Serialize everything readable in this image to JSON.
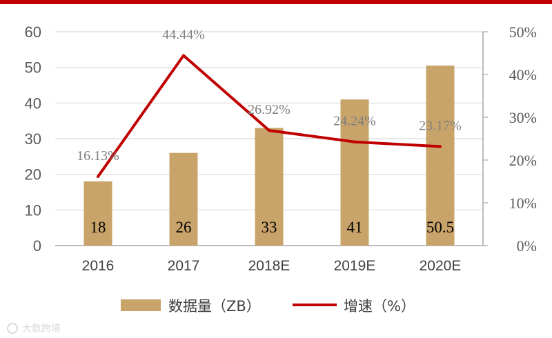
{
  "chart_data": {
    "type": "bar",
    "categories": [
      "2016",
      "2017",
      "2018E",
      "2019E",
      "2020E"
    ],
    "series": [
      {
        "name": "数据量（ZB）",
        "type": "bar",
        "axis": "left",
        "values": [
          18,
          26,
          33,
          41,
          50.5
        ],
        "value_labels": [
          "18",
          "26",
          "33",
          "41",
          "50.5"
        ],
        "color": "#C9A46A"
      },
      {
        "name": "增速（%）",
        "type": "line",
        "axis": "right",
        "values": [
          16.13,
          44.44,
          26.92,
          24.24,
          23.17
        ],
        "value_labels": [
          "16.13%",
          "44.44%",
          "26.92%",
          "24.24%",
          "23.17%"
        ],
        "color": "#C00000"
      }
    ],
    "y_left": {
      "ylim": [
        0,
        60
      ],
      "ticks": [
        "0",
        "10",
        "20",
        "30",
        "40",
        "50",
        "60"
      ]
    },
    "y_right": {
      "ylim": [
        0,
        50
      ],
      "ticks": [
        "0%",
        "10%",
        "20%",
        "30%",
        "40%",
        "50%"
      ]
    },
    "grid": true,
    "legend_position": "bottom",
    "title": "",
    "xlabel": "",
    "ylabel": ""
  },
  "colors": {
    "top_rule": "#C00000",
    "grid": "#D9D9D9",
    "axis": "#A6A6A6"
  },
  "watermark": "大数跨境"
}
